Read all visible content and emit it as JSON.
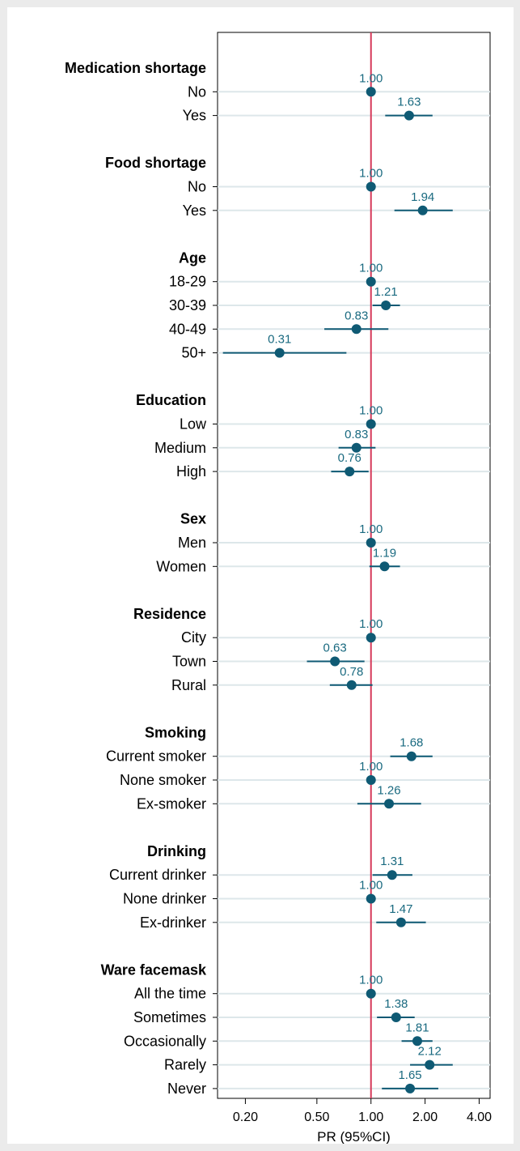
{
  "chart_data": {
    "type": "forest",
    "xlabel": "PR (95%CI)",
    "x_scale": "log",
    "xlim": [
      0.14,
      4.6
    ],
    "ticks": [
      {
        "value": 0.2,
        "label": "0.20"
      },
      {
        "value": 0.5,
        "label": "0.50"
      },
      {
        "value": 1.0,
        "label": "1.00"
      },
      {
        "value": 2.0,
        "label": "2.00"
      },
      {
        "value": 4.0,
        "label": "4.00"
      }
    ],
    "reference_value": 1.0,
    "colors": {
      "marker": "#0f5a74",
      "reference_line": "#d63a5a",
      "row_line": "#dde7ea",
      "background": "#ebebeb"
    },
    "groups": [
      {
        "name": "Medication shortage",
        "rows": [
          {
            "label": "No",
            "pr": 1.0,
            "pr_text": "1.00",
            "lo": 1.0,
            "hi": 1.0
          },
          {
            "label": "Yes",
            "pr": 1.63,
            "pr_text": "1.63",
            "lo": 1.2,
            "hi": 2.2
          }
        ]
      },
      {
        "name": "Food shortage",
        "rows": [
          {
            "label": "No",
            "pr": 1.0,
            "pr_text": "1.00",
            "lo": 1.0,
            "hi": 1.0
          },
          {
            "label": "Yes",
            "pr": 1.94,
            "pr_text": "1.94",
            "lo": 1.35,
            "hi": 2.85
          }
        ]
      },
      {
        "name": "Age",
        "rows": [
          {
            "label": "18-29",
            "pr": 1.0,
            "pr_text": "1.00",
            "lo": 1.0,
            "hi": 1.0
          },
          {
            "label": "30-39",
            "pr": 1.21,
            "pr_text": "1.21",
            "lo": 1.02,
            "hi": 1.45
          },
          {
            "label": "40-49",
            "pr": 0.83,
            "pr_text": "0.83",
            "lo": 0.55,
            "hi": 1.25
          },
          {
            "label": "50+",
            "pr": 0.31,
            "pr_text": "0.31",
            "lo": 0.15,
            "hi": 0.73
          }
        ]
      },
      {
        "name": "Education",
        "rows": [
          {
            "label": "Low",
            "pr": 1.0,
            "pr_text": "1.00",
            "lo": 1.0,
            "hi": 1.0
          },
          {
            "label": "Medium",
            "pr": 0.83,
            "pr_text": "0.83",
            "lo": 0.66,
            "hi": 1.06
          },
          {
            "label": "High",
            "pr": 0.76,
            "pr_text": "0.76",
            "lo": 0.6,
            "hi": 0.97
          }
        ]
      },
      {
        "name": "Sex",
        "rows": [
          {
            "label": "Men",
            "pr": 1.0,
            "pr_text": "1.00",
            "lo": 1.0,
            "hi": 1.0
          },
          {
            "label": "Women",
            "pr": 1.19,
            "pr_text": "1.19",
            "lo": 0.98,
            "hi": 1.45
          }
        ]
      },
      {
        "name": "Residence",
        "rows": [
          {
            "label": "City",
            "pr": 1.0,
            "pr_text": "1.00",
            "lo": 1.0,
            "hi": 1.0
          },
          {
            "label": "Town",
            "pr": 0.63,
            "pr_text": "0.63",
            "lo": 0.44,
            "hi": 0.92
          },
          {
            "label": "Rural",
            "pr": 0.78,
            "pr_text": "0.78",
            "lo": 0.59,
            "hi": 1.02
          }
        ]
      },
      {
        "name": "Smoking",
        "rows": [
          {
            "label": "Current smoker",
            "pr": 1.68,
            "pr_text": "1.68",
            "lo": 1.28,
            "hi": 2.2
          },
          {
            "label": "None smoker",
            "pr": 1.0,
            "pr_text": "1.00",
            "lo": 1.0,
            "hi": 1.0
          },
          {
            "label": "Ex-smoker",
            "pr": 1.26,
            "pr_text": "1.26",
            "lo": 0.84,
            "hi": 1.9
          }
        ]
      },
      {
        "name": "Drinking",
        "rows": [
          {
            "label": "Current drinker",
            "pr": 1.31,
            "pr_text": "1.31",
            "lo": 1.02,
            "hi": 1.7
          },
          {
            "label": "None drinker",
            "pr": 1.0,
            "pr_text": "1.00",
            "lo": 1.0,
            "hi": 1.0
          },
          {
            "label": "Ex-drinker",
            "pr": 1.47,
            "pr_text": "1.47",
            "lo": 1.07,
            "hi": 2.02
          }
        ]
      },
      {
        "name": "Ware facemask",
        "rows": [
          {
            "label": "All the time",
            "pr": 1.0,
            "pr_text": "1.00",
            "lo": 1.0,
            "hi": 1.0
          },
          {
            "label": "Sometimes",
            "pr": 1.38,
            "pr_text": "1.38",
            "lo": 1.08,
            "hi": 1.75
          },
          {
            "label": "Occasionally",
            "pr": 1.81,
            "pr_text": "1.81",
            "lo": 1.48,
            "hi": 2.2
          },
          {
            "label": "Rarely",
            "pr": 2.12,
            "pr_text": "2.12",
            "lo": 1.65,
            "hi": 2.85
          },
          {
            "label": "Never",
            "pr": 1.65,
            "pr_text": "1.65",
            "lo": 1.15,
            "hi": 2.37
          }
        ]
      }
    ]
  }
}
